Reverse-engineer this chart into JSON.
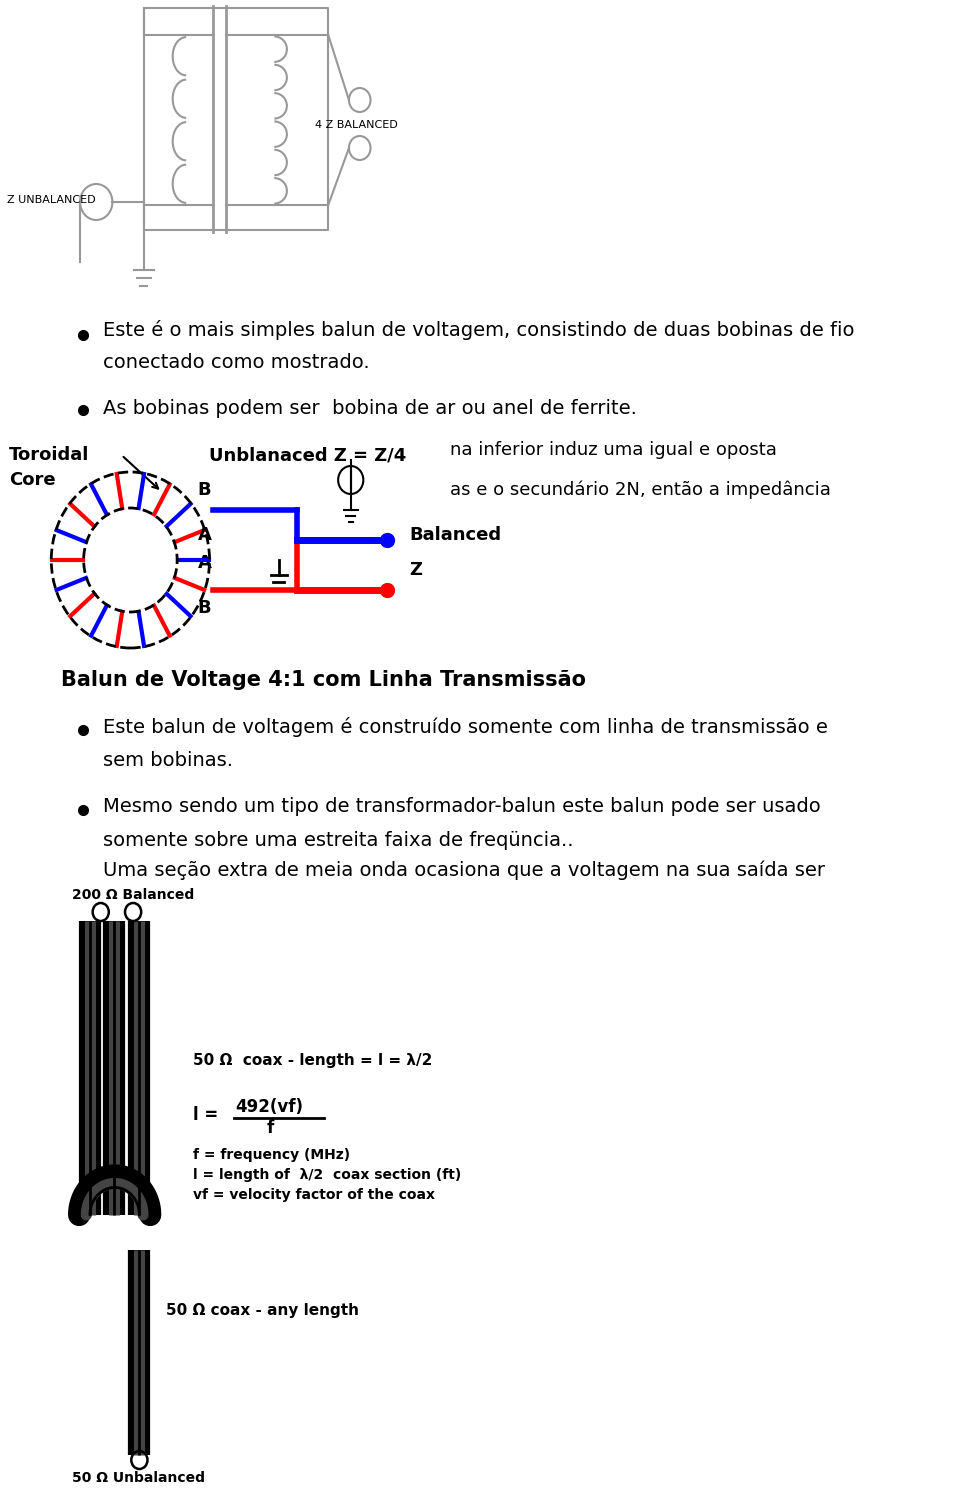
{
  "bg_color": "#ffffff",
  "fig_width": 9.6,
  "fig_height": 15.02,
  "label_zunbal": "Z UNBALANCED",
  "label_4z": "4 Z BALANCED",
  "bullet1_text1": "Este é o mais simples balun de voltagem, consistindo de duas bobinas de fio",
  "bullet1_text2": "conectado como mostrado.",
  "bullet2_text": "As bobinas podem ser  bobina de ar ou anel de ferrite.",
  "toroid_label1": "Toroidal",
  "toroid_label2": "Core",
  "unbal_z_label": "Unblanaced Z = Z/4",
  "partial_text1": "na inferior induz uma igual e oposta",
  "partial_text2": "as e o secundário 2N, então a impedância",
  "balanced_label1": "Balanced",
  "balanced_label2": "Z",
  "section_title": "Balun de Voltage 4:1 com Linha Transmissão",
  "bullet3_text1": "Este balun de voltagem é construído somente com linha de transmissão e",
  "bullet3_text2": "sem bobinas.",
  "bullet4_text1": "Mesmo sendo um tipo de transformador-balun este balun pode ser usado",
  "bullet4_text2": "somente sobre uma estreita faixa de freqüncia..",
  "bullet4_text3": "Uma seção extra de meia onda ocasiona que a voltagem na sua saída ser",
  "coax_label_200": "200 Ω Balanced",
  "coax_label_50_top": "50 Ω  coax - length = l = λ/2",
  "formula_numer": "492(vf)",
  "formula_denom": "f",
  "formula_f": "f = frequency (MHz)",
  "formula_l": "l = length of  λ/2  coax section (ft)",
  "formula_vf": "vf = velocity factor of the coax",
  "coax_label_50_any": "50 Ω coax - any length",
  "coax_label_50_unbal": "50 Ω Unbalanced"
}
